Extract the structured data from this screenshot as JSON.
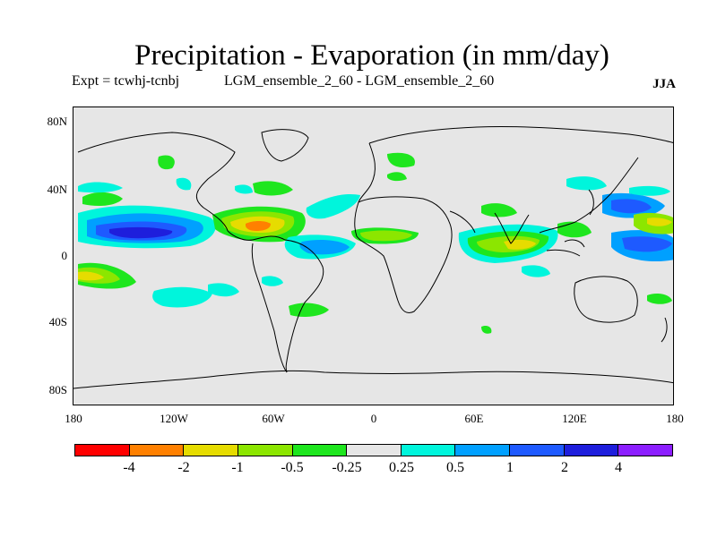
{
  "title": "Precipitation - Evaporation (in mm/day)",
  "experiment": "Expt = tcwhj-tcnbj",
  "ensemble": "LGM_ensemble_2_60 - LGM_ensemble_2_60",
  "season": "JJA",
  "lat_labels": [
    "80N",
    "40N",
    "0",
    "40S",
    "80S"
  ],
  "lon_labels": [
    "180",
    "120W",
    "60W",
    "0",
    "60E",
    "120E",
    "180"
  ],
  "colorbar": {
    "colors": [
      "#ff0000",
      "#ff8000",
      "#e6dc00",
      "#8ce600",
      "#1ee61e",
      "#e6e6e6",
      "#00f5dc",
      "#00a0ff",
      "#1e5aff",
      "#1e1edc",
      "#8c1eff"
    ],
    "labels": [
      "-4",
      "-2",
      "-1",
      "-0.5",
      "-0.25",
      "0.25",
      "0.5",
      "1",
      "2",
      "4"
    ]
  }
}
